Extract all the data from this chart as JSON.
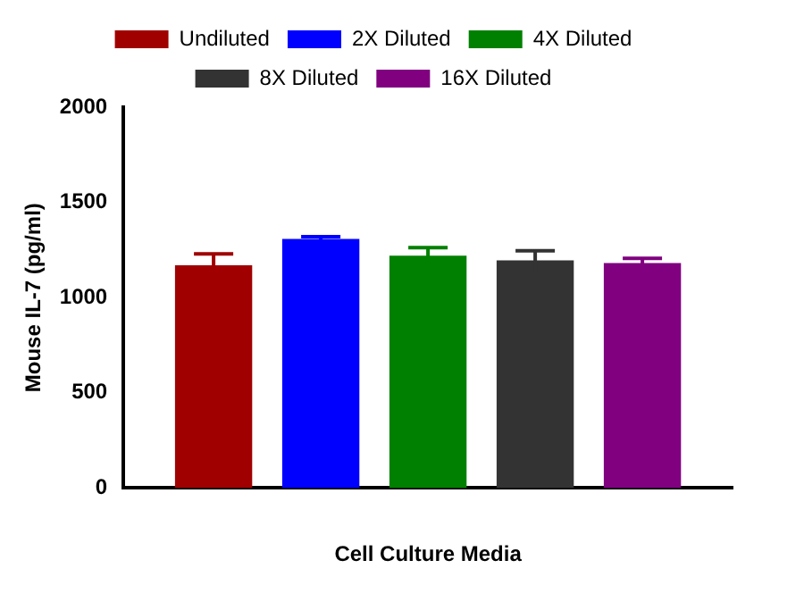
{
  "chart_data": {
    "type": "bar",
    "ylabel": "Mouse IL-7 (pg/ml)",
    "xlabel": "Cell Culture Media",
    "categories": [
      null
    ],
    "series": [
      {
        "name": "Undiluted",
        "color": "#a00000",
        "values": [
          1170
        ],
        "errors": [
          60
        ]
      },
      {
        "name": "2X Diluted",
        "color": "#0000ff",
        "values": [
          1308
        ],
        "errors": [
          12
        ]
      },
      {
        "name": "4X Diluted",
        "color": "#008000",
        "values": [
          1220
        ],
        "errors": [
          42
        ]
      },
      {
        "name": "8X Diluted",
        "color": "#333333",
        "values": [
          1196
        ],
        "errors": [
          50
        ]
      },
      {
        "name": "16X Diluted",
        "color": "#800080",
        "values": [
          1181
        ],
        "errors": [
          25
        ]
      }
    ],
    "ylim": [
      0,
      2000
    ],
    "yticks": [
      0,
      500,
      1000,
      1500,
      2000
    ],
    "grid": false,
    "legend": "top"
  }
}
